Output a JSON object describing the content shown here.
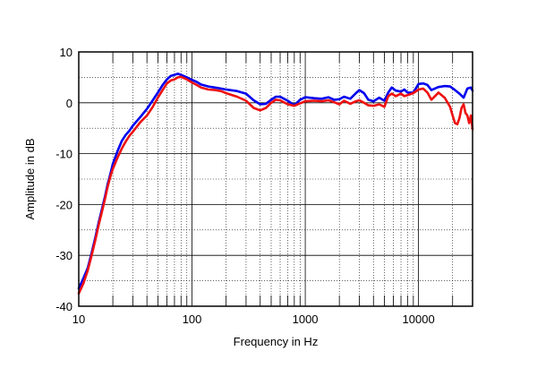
{
  "chart_data": {
    "type": "line",
    "title": "",
    "xlabel": "Frequency in Hz",
    "ylabel": "Amplitude in dB",
    "x_scale": "log",
    "xlim": [
      10,
      30000
    ],
    "ylim": [
      -40,
      10
    ],
    "grid": true,
    "legend": "none",
    "x_tick_labels": [
      {
        "value": 10,
        "label": "10"
      },
      {
        "value": 100,
        "label": "100"
      },
      {
        "value": 1000,
        "label": "1000"
      },
      {
        "value": 10000,
        "label": "10000"
      }
    ],
    "y_tick_labels": [
      {
        "value": 10,
        "label": "10"
      },
      {
        "value": 0,
        "label": "0"
      },
      {
        "value": -10,
        "label": "-10"
      },
      {
        "value": -20,
        "label": "-20"
      },
      {
        "value": -30,
        "label": "-30"
      },
      {
        "value": -40,
        "label": "-40"
      }
    ],
    "series": [
      {
        "color": "#0000ee",
        "points": [
          [
            10,
            -36.5
          ],
          [
            11,
            -34.5
          ],
          [
            12,
            -32.5
          ],
          [
            13,
            -29.5
          ],
          [
            14,
            -26.5
          ],
          [
            15,
            -23.5
          ],
          [
            16,
            -21
          ],
          [
            17,
            -18.5
          ],
          [
            18,
            -16
          ],
          [
            19,
            -14
          ],
          [
            20,
            -12
          ],
          [
            22,
            -9.5
          ],
          [
            24,
            -7.5
          ],
          [
            26,
            -6.3
          ],
          [
            28,
            -5.5
          ],
          [
            30,
            -4.5
          ],
          [
            35,
            -2.8
          ],
          [
            40,
            -1.2
          ],
          [
            45,
            0.5
          ],
          [
            50,
            2
          ],
          [
            55,
            3.5
          ],
          [
            60,
            4.6
          ],
          [
            65,
            5.3
          ],
          [
            70,
            5.5
          ],
          [
            75,
            5.7
          ],
          [
            80,
            5.5
          ],
          [
            90,
            5.0
          ],
          [
            100,
            4.5
          ],
          [
            110,
            4.1
          ],
          [
            120,
            3.6
          ],
          [
            140,
            3.2
          ],
          [
            160,
            3.0
          ],
          [
            180,
            2.8
          ],
          [
            200,
            2.6
          ],
          [
            250,
            2.3
          ],
          [
            300,
            1.8
          ],
          [
            350,
            0.5
          ],
          [
            400,
            -0.3
          ],
          [
            450,
            -0.2
          ],
          [
            500,
            0.6
          ],
          [
            550,
            1.2
          ],
          [
            600,
            1.2
          ],
          [
            700,
            0.4
          ],
          [
            800,
            -0.5
          ],
          [
            900,
            0.6
          ],
          [
            1000,
            1.1
          ],
          [
            1200,
            0.9
          ],
          [
            1400,
            0.8
          ],
          [
            1600,
            1.1
          ],
          [
            1800,
            0.6
          ],
          [
            2000,
            0.7
          ],
          [
            2200,
            1.2
          ],
          [
            2500,
            0.8
          ],
          [
            2800,
            1.9
          ],
          [
            3000,
            2.5
          ],
          [
            3300,
            1.9
          ],
          [
            3600,
            0.6
          ],
          [
            4000,
            0.3
          ],
          [
            4500,
            1.0
          ],
          [
            5000,
            0.4
          ],
          [
            5400,
            2.0
          ],
          [
            5800,
            3.0
          ],
          [
            6300,
            2.4
          ],
          [
            7000,
            2.2
          ],
          [
            7500,
            2.6
          ],
          [
            8000,
            2.0
          ],
          [
            9000,
            2.0
          ],
          [
            10000,
            3.7
          ],
          [
            11000,
            3.8
          ],
          [
            12000,
            3.5
          ],
          [
            13000,
            2.5
          ],
          [
            15000,
            3.1
          ],
          [
            17000,
            3.3
          ],
          [
            19000,
            3.2
          ],
          [
            21000,
            2.5
          ],
          [
            23000,
            1.8
          ],
          [
            25000,
            1.0
          ],
          [
            27000,
            2.8
          ],
          [
            29000,
            3.0
          ],
          [
            30000,
            2.4
          ]
        ]
      },
      {
        "color": "#ee1111",
        "points": [
          [
            10,
            -37.5
          ],
          [
            11,
            -35.5
          ],
          [
            12,
            -33
          ],
          [
            13,
            -30
          ],
          [
            14,
            -27
          ],
          [
            15,
            -24
          ],
          [
            16,
            -21.5
          ],
          [
            17,
            -19
          ],
          [
            18,
            -16.5
          ],
          [
            19,
            -14.5
          ],
          [
            20,
            -13
          ],
          [
            22,
            -10.8
          ],
          [
            24,
            -9
          ],
          [
            26,
            -7.6
          ],
          [
            28,
            -6.5
          ],
          [
            30,
            -5.7
          ],
          [
            35,
            -3.8
          ],
          [
            40,
            -2.5
          ],
          [
            45,
            -0.8
          ],
          [
            50,
            1.0
          ],
          [
            55,
            2.5
          ],
          [
            60,
            3.8
          ],
          [
            65,
            4.4
          ],
          [
            70,
            4.6
          ],
          [
            75,
            5.0
          ],
          [
            80,
            5.1
          ],
          [
            90,
            4.6
          ],
          [
            100,
            4.0
          ],
          [
            110,
            3.5
          ],
          [
            120,
            3.0
          ],
          [
            140,
            2.6
          ],
          [
            160,
            2.5
          ],
          [
            180,
            2.3
          ],
          [
            200,
            1.9
          ],
          [
            250,
            1.2
          ],
          [
            300,
            0.4
          ],
          [
            350,
            -1.0
          ],
          [
            400,
            -1.5
          ],
          [
            450,
            -1.0
          ],
          [
            500,
            0.0
          ],
          [
            550,
            0.6
          ],
          [
            600,
            0.5
          ],
          [
            700,
            -0.3
          ],
          [
            800,
            -0.6
          ],
          [
            900,
            -0.1
          ],
          [
            1000,
            0.3
          ],
          [
            1200,
            0.4
          ],
          [
            1400,
            0.3
          ],
          [
            1600,
            0.5
          ],
          [
            1800,
            0.1
          ],
          [
            2000,
            -0.3
          ],
          [
            2200,
            0.4
          ],
          [
            2500,
            -0.2
          ],
          [
            2800,
            0.3
          ],
          [
            3000,
            0.5
          ],
          [
            3300,
            0.0
          ],
          [
            3600,
            -0.5
          ],
          [
            4000,
            -0.6
          ],
          [
            4500,
            -0.3
          ],
          [
            5000,
            -0.8
          ],
          [
            5400,
            1.3
          ],
          [
            5800,
            1.8
          ],
          [
            6300,
            1.3
          ],
          [
            7000,
            1.8
          ],
          [
            7500,
            1.3
          ],
          [
            8000,
            1.5
          ],
          [
            9000,
            1.9
          ],
          [
            10000,
            2.6
          ],
          [
            11000,
            2.8
          ],
          [
            12000,
            2.0
          ],
          [
            13000,
            0.6
          ],
          [
            15000,
            2.0
          ],
          [
            17000,
            1.0
          ],
          [
            19000,
            -0.8
          ],
          [
            20000,
            -2.5
          ],
          [
            21000,
            -4.0
          ],
          [
            22000,
            -4.2
          ],
          [
            23000,
            -3.0
          ],
          [
            24000,
            -1.0
          ],
          [
            25000,
            -0.3
          ],
          [
            26000,
            -2.0
          ],
          [
            27000,
            -2.5
          ],
          [
            28000,
            -4.0
          ],
          [
            29000,
            -2.5
          ],
          [
            30000,
            -5.2
          ]
        ]
      }
    ]
  }
}
